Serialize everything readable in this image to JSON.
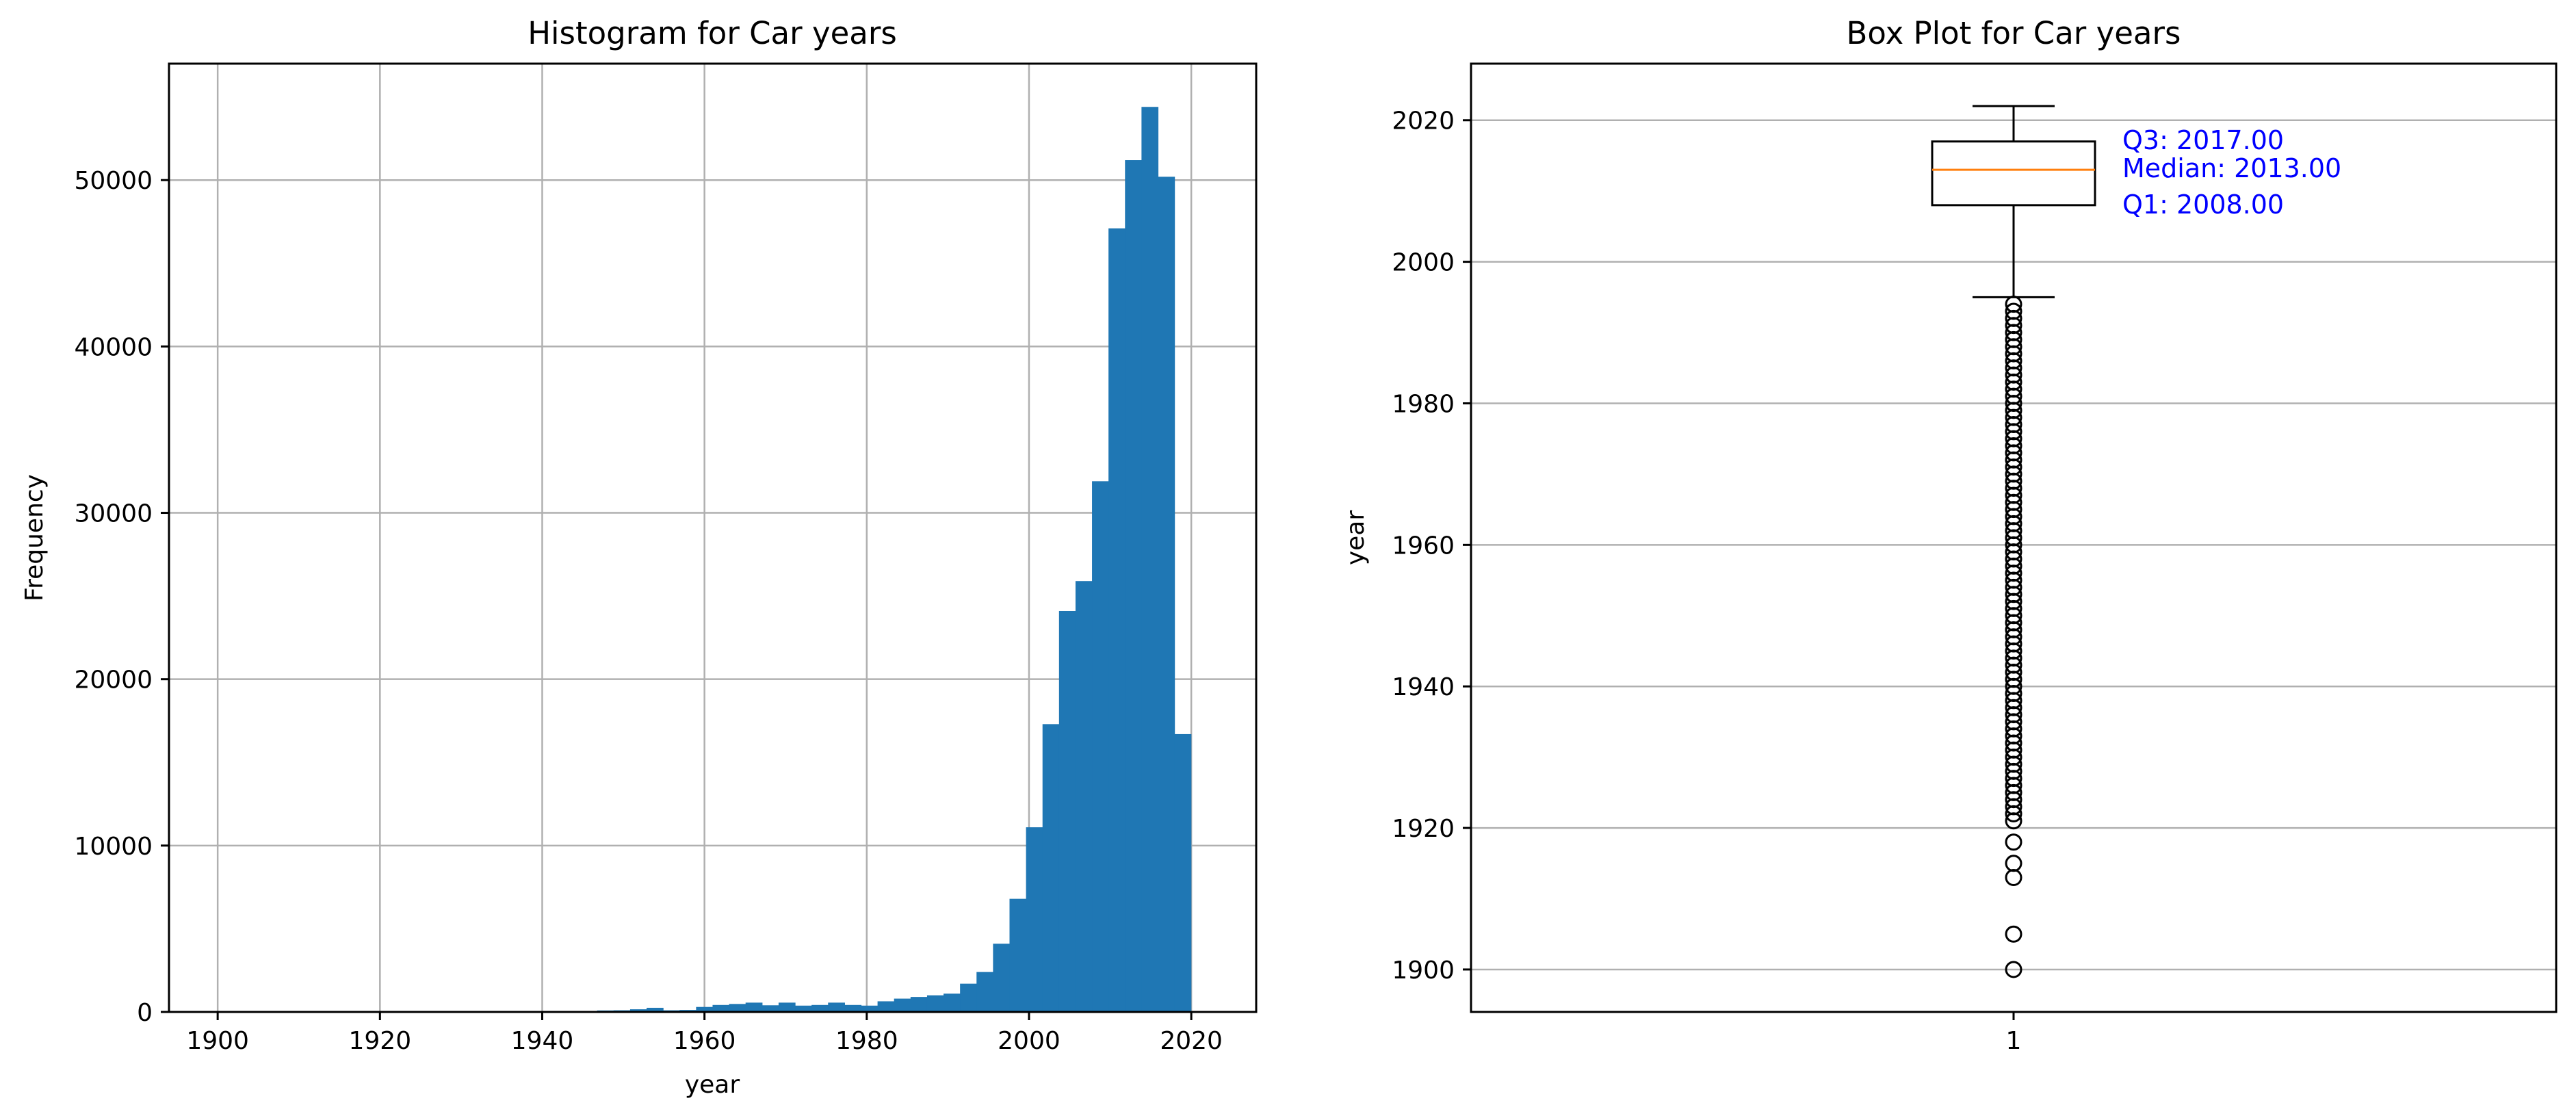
{
  "chart_data": [
    {
      "type": "histogram",
      "title": "Histogram for Car years",
      "xlabel": "year",
      "ylabel": "Frequency",
      "xlim": [
        1894,
        2028
      ],
      "ylim": [
        0,
        57000
      ],
      "xticks": [
        1900,
        1920,
        1940,
        1960,
        1980,
        2000,
        2020
      ],
      "yticks": [
        0,
        10000,
        20000,
        30000,
        40000,
        50000
      ],
      "grid": true,
      "color": "#1f77b4",
      "bin_start": 1900,
      "bin_width": 2.0333,
      "counts": [
        10,
        0,
        0,
        0,
        5,
        0,
        5,
        0,
        0,
        0,
        0,
        0,
        0,
        0,
        30,
        0,
        20,
        20,
        30,
        40,
        50,
        0,
        60,
        90,
        100,
        160,
        250,
        100,
        120,
        300,
        420,
        480,
        560,
        400,
        560,
        380,
        420,
        560,
        420,
        380,
        640,
        800,
        900,
        1000,
        1100,
        1700,
        2400,
        4100,
        6800,
        11100,
        17300,
        24100,
        25900,
        31900,
        47100,
        51200,
        54400,
        50200,
        16700,
        0
      ]
    },
    {
      "type": "box",
      "title": "Box Plot for Car years",
      "xlabel": "",
      "ylabel": "year",
      "categories": [
        "1"
      ],
      "ylim": [
        1894,
        2028
      ],
      "yticks": [
        1900,
        1920,
        1940,
        1960,
        1980,
        2000,
        2020
      ],
      "grid": true,
      "q1": 2008,
      "median": 2013,
      "q3": 2017,
      "whisker_low": 1995,
      "whisker_high": 2022,
      "outliers": [
        1900,
        1905,
        1913,
        1915,
        1918,
        1921,
        1922,
        1923,
        1924,
        1925,
        1926,
        1927,
        1928,
        1929,
        1930,
        1931,
        1932,
        1933,
        1934,
        1935,
        1936,
        1937,
        1938,
        1939,
        1940,
        1941,
        1942,
        1943,
        1944,
        1945,
        1946,
        1947,
        1948,
        1949,
        1950,
        1951,
        1952,
        1953,
        1954,
        1955,
        1956,
        1957,
        1958,
        1959,
        1960,
        1961,
        1962,
        1963,
        1964,
        1965,
        1966,
        1967,
        1968,
        1969,
        1970,
        1971,
        1972,
        1973,
        1974,
        1975,
        1976,
        1977,
        1978,
        1979,
        1980,
        1981,
        1982,
        1983,
        1984,
        1985,
        1986,
        1987,
        1988,
        1989,
        1990,
        1991,
        1992,
        1993,
        1994
      ],
      "annotations": {
        "q3": "Q3: 2017.00",
        "median": "Median: 2013.00",
        "q1": "Q1: 2008.00"
      },
      "median_color": "#ff7f0e",
      "annotation_color": "#0000ff"
    }
  ]
}
